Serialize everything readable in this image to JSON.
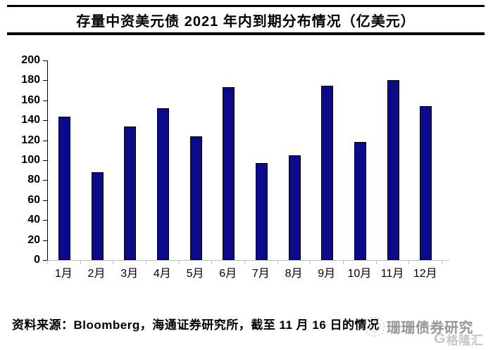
{
  "chart_data": {
    "type": "bar",
    "title": "存量中资美元债 2021 年内到期分布情况（亿美元）",
    "categories": [
      "1月",
      "2月",
      "3月",
      "4月",
      "5月",
      "6月",
      "7月",
      "8月",
      "9月",
      "10月",
      "11月",
      "12月"
    ],
    "values": [
      144,
      88,
      134,
      152,
      124,
      173,
      97,
      105,
      175,
      118,
      180,
      154
    ],
    "ylim": [
      0,
      200
    ],
    "y_ticks": [
      0,
      20,
      40,
      60,
      80,
      100,
      120,
      140,
      160,
      180,
      200
    ],
    "xlabel": "",
    "ylabel": "",
    "grid": false,
    "legend": "none",
    "bar_color": "#0A0A8A",
    "bar_border_color": "#000000"
  },
  "footer": {
    "source_text": "资料来源：Bloomberg，海通证券研究所，截至 11 月 16 日的情况"
  },
  "watermark": {
    "text": "珊珊债券研究"
  },
  "logo": {
    "icon_letter": "G",
    "text": "格隆汇"
  }
}
